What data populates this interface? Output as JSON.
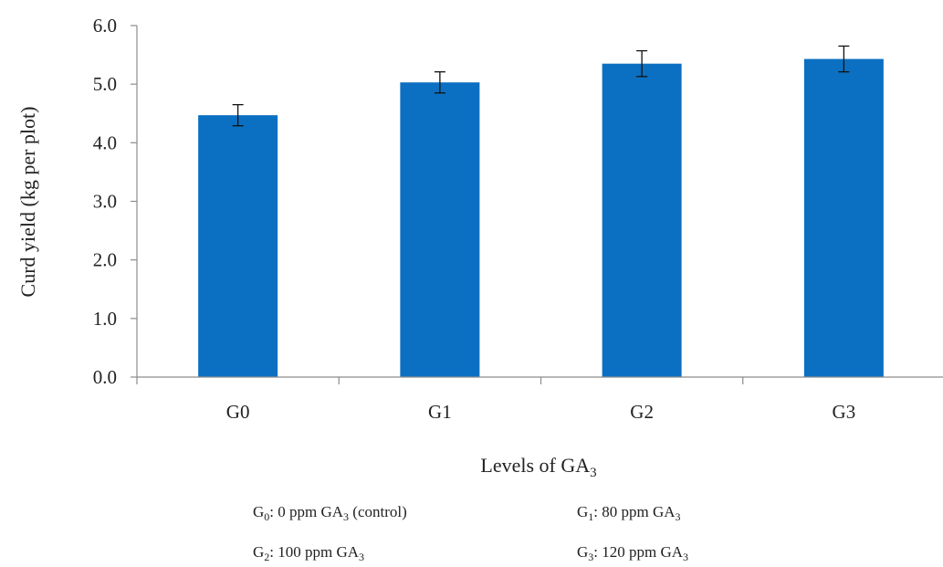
{
  "chart_data": {
    "type": "bar",
    "categories": [
      "G0",
      "G1",
      "G2",
      "G3"
    ],
    "values": [
      4.47,
      5.03,
      5.35,
      5.43
    ],
    "error": [
      0.18,
      0.18,
      0.22,
      0.22
    ],
    "xlabel": {
      "text": "Levels  of  GA",
      "sub": "3"
    },
    "ylabel": "Curd yield  (kg per plot)",
    "ylim": [
      0,
      6
    ],
    "yticks": [
      0,
      1,
      2,
      3,
      4,
      5,
      6
    ],
    "ytick_labels": [
      "0.0",
      "1.0",
      "2.0",
      "3.0",
      "4.0",
      "5.0",
      "6.0"
    ],
    "grid": false,
    "bar_color": "#0b70c2",
    "legend_notes": [
      {
        "pre": "G",
        "sub": "0",
        "mid": ": 0 ppm GA",
        "sub2": "3",
        "post": " (control)"
      },
      {
        "pre": "G",
        "sub": "1",
        "mid": ": 80 ppm GA",
        "sub2": "3",
        "post": ""
      },
      {
        "pre": "G",
        "sub": "2",
        "mid": ": 100 ppm GA",
        "sub2": "3",
        "post": ""
      },
      {
        "pre": "G",
        "sub": "3",
        "mid": ": 120 ppm GA",
        "sub2": "3",
        "post": ""
      }
    ]
  }
}
